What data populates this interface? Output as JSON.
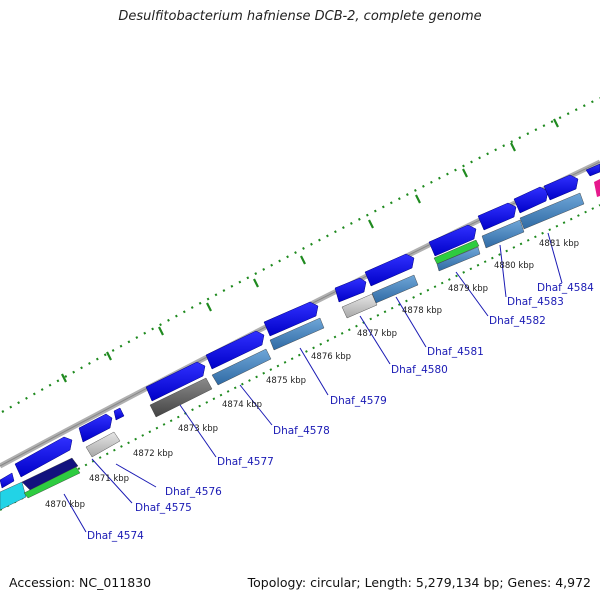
{
  "title": "Desulfitobacterium hafniense DCB-2, complete genome",
  "footer": {
    "accession": "Accession: NC_011830",
    "summary": "Topology: circular; Length: 5,279,134 bp; Genes: 4,972"
  },
  "colors": {
    "forward_cds": "#0a0ae6",
    "reverse_cds_steel": "#4a86c0",
    "reverse_cds_gray": "#666666",
    "reverse_cds_light": "#c8c8c8",
    "navy_cds": "#10107a",
    "green_feature": "#2ecc40",
    "cyan_feature": "#22d3e6",
    "pink_feature": "#e6198c",
    "backbone": "#a8a8a8",
    "tick_dots": "#1f7a1f",
    "label_line": "#1a1ab4"
  },
  "kbp_labels": [
    "4870 kbp",
    "4871 kbp",
    "4872 kbp",
    "4873 kbp",
    "4874 kbp",
    "4875 kbp",
    "4876 kbp",
    "4877 kbp",
    "4878 kbp",
    "4879 kbp",
    "4880 kbp",
    "4881 kbp"
  ],
  "gene_labels": [
    "Dhaf_4574",
    "Dhaf_4575",
    "Dhaf_4576",
    "Dhaf_4577",
    "Dhaf_4578",
    "Dhaf_4579",
    "Dhaf_4580",
    "Dhaf_4581",
    "Dhaf_4582",
    "Dhaf_4583",
    "Dhaf_4584"
  ]
}
